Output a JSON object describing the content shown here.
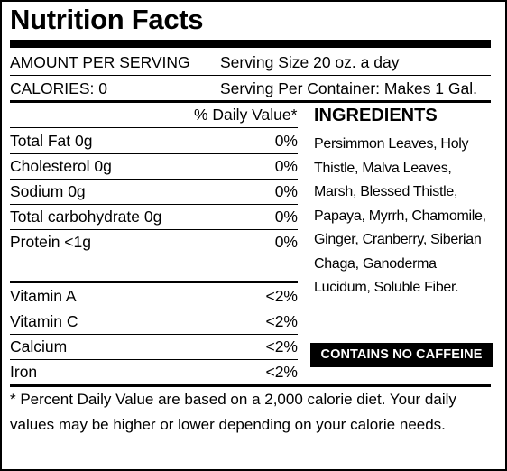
{
  "title": "Nutrition Facts",
  "serving": {
    "amount_label": "AMOUNT PER SERVING",
    "serving_size": "Serving Size 20 oz. a day",
    "calories": "CALORIES: 0",
    "servings_per_container": "Serving Per Container: Makes 1 Gal."
  },
  "daily_value_header": "% Daily Value*",
  "nutrients": [
    {
      "name": "Total Fat 0g",
      "value": "0%"
    },
    {
      "name": "Cholesterol 0g",
      "value": "0%"
    },
    {
      "name": "Sodium 0g",
      "value": "0%"
    },
    {
      "name": "Total carbohydrate 0g",
      "value": "0%"
    },
    {
      "name": "Protein <1g",
      "value": "0%"
    }
  ],
  "vitamins": [
    {
      "name": "Vitamin A",
      "value": "<2%"
    },
    {
      "name": "Vitamin C",
      "value": "<2%"
    },
    {
      "name": "Calcium",
      "value": "<2%"
    },
    {
      "name": "Iron",
      "value": "<2%"
    }
  ],
  "ingredients": {
    "heading": "INGREDIENTS",
    "text": "Persimmon Leaves, Holy Thistle, Malva Leaves, Marsh, Blessed Thistle, Papaya, Myrrh, Chamomile, Ginger, Cranberry, Siberian Chaga, Ganoderma Lucidum, Soluble Fiber."
  },
  "badge": "CONTAINS NO CAFFEINE",
  "footnote": "* Percent Daily Value are based on a 2,000 calorie diet. Your daily values may be higher or lower depending on your calorie needs."
}
